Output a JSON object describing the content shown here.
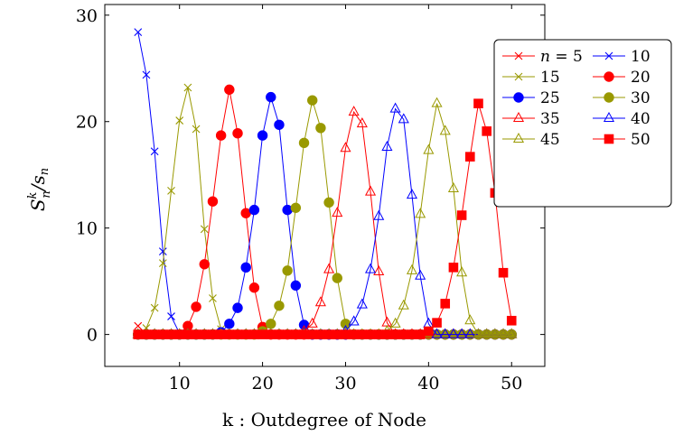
{
  "chart_data": {
    "type": "line",
    "xlabel": "k : Outdegree of Node",
    "ylabel_main": "S",
    "ylabel_sup": "k",
    "ylabel_sub": "n",
    "ylabel_tail": "/s",
    "ylabel_tail_sub": "n",
    "xlim": [
      1,
      54
    ],
    "ylim": [
      -3,
      31
    ],
    "x_ticks": [
      10,
      20,
      30,
      40,
      50
    ],
    "y_ticks": [
      0,
      10,
      20,
      30
    ],
    "grid": false,
    "legend_position": "top-right",
    "x_range": [
      5,
      50
    ],
    "series": [
      {
        "name": "n = 5",
        "color": "#ff0000",
        "marker": "x",
        "peaks": [
          [
            5,
            0.8
          ]
        ]
      },
      {
        "name": "10",
        "color": "#0000ff",
        "marker": "x",
        "peaks": [
          [
            5,
            28.4
          ],
          [
            6,
            24.4
          ],
          [
            7,
            17.2
          ],
          [
            8,
            7.8
          ],
          [
            9,
            1.7
          ],
          [
            10,
            0.1
          ]
        ]
      },
      {
        "name": "15",
        "color": "#999900",
        "marker": "x",
        "peaks": [
          [
            6,
            0.6
          ],
          [
            7,
            2.5
          ],
          [
            8,
            6.7
          ],
          [
            9,
            13.5
          ],
          [
            10,
            20.1
          ],
          [
            11,
            23.2
          ],
          [
            12,
            19.3
          ],
          [
            13,
            9.9
          ],
          [
            14,
            3.4
          ],
          [
            15,
            0.5
          ]
        ]
      },
      {
        "name": "20",
        "color": "#ff0000",
        "marker": "circle",
        "peaks": [
          [
            11,
            0.8
          ],
          [
            12,
            2.6
          ],
          [
            13,
            6.6
          ],
          [
            14,
            12.5
          ],
          [
            15,
            18.7
          ],
          [
            16,
            23.0
          ],
          [
            17,
            18.9
          ],
          [
            18,
            11.4
          ],
          [
            19,
            4.4
          ],
          [
            20,
            0.7
          ]
        ]
      },
      {
        "name": "25",
        "color": "#0000ff",
        "marker": "circle",
        "peaks": [
          [
            15,
            0.2
          ],
          [
            16,
            1.0
          ],
          [
            17,
            2.5
          ],
          [
            18,
            6.3
          ],
          [
            19,
            11.7
          ],
          [
            20,
            18.7
          ],
          [
            21,
            22.3
          ],
          [
            22,
            19.7
          ],
          [
            23,
            11.7
          ],
          [
            24,
            4.6
          ],
          [
            25,
            0.9
          ]
        ]
      },
      {
        "name": "30",
        "color": "#999900",
        "marker": "circle",
        "peaks": [
          [
            20,
            0.3
          ],
          [
            21,
            1.0
          ],
          [
            22,
            2.7
          ],
          [
            23,
            6.0
          ],
          [
            24,
            11.9
          ],
          [
            25,
            18.0
          ],
          [
            26,
            22.0
          ],
          [
            27,
            19.4
          ],
          [
            28,
            12.4
          ],
          [
            29,
            5.3
          ],
          [
            30,
            1.0
          ]
        ]
      },
      {
        "name": "35",
        "color": "#ff0000",
        "marker": "triangle",
        "peaks": [
          [
            25,
            0.3
          ],
          [
            26,
            1.0
          ],
          [
            27,
            3.0
          ],
          [
            28,
            6.1
          ],
          [
            29,
            11.4
          ],
          [
            30,
            17.5
          ],
          [
            31,
            20.9
          ],
          [
            32,
            19.8
          ],
          [
            33,
            13.4
          ],
          [
            34,
            5.9
          ],
          [
            35,
            1.1
          ]
        ]
      },
      {
        "name": "40",
        "color": "#0000ff",
        "marker": "triangle",
        "peaks": [
          [
            30,
            0.3
          ],
          [
            31,
            1.2
          ],
          [
            32,
            2.8
          ],
          [
            33,
            6.1
          ],
          [
            34,
            11.1
          ],
          [
            35,
            17.6
          ],
          [
            36,
            21.2
          ],
          [
            37,
            20.2
          ],
          [
            38,
            13.1
          ],
          [
            39,
            5.5
          ],
          [
            40,
            1.0
          ]
        ]
      },
      {
        "name": "45",
        "color": "#999900",
        "marker": "triangle",
        "peaks": [
          [
            35,
            0.3
          ],
          [
            36,
            1.0
          ],
          [
            37,
            2.7
          ],
          [
            38,
            6.0
          ],
          [
            39,
            11.3
          ],
          [
            40,
            17.3
          ],
          [
            41,
            21.7
          ],
          [
            42,
            19.1
          ],
          [
            43,
            13.7
          ],
          [
            44,
            5.8
          ],
          [
            45,
            1.3
          ]
        ]
      },
      {
        "name": "50",
        "color": "#ff0000",
        "marker": "square",
        "peaks": [
          [
            40,
            0.3
          ],
          [
            41,
            1.1
          ],
          [
            42,
            2.9
          ],
          [
            43,
            6.3
          ],
          [
            44,
            11.2
          ],
          [
            45,
            16.7
          ],
          [
            46,
            21.7
          ],
          [
            47,
            19.1
          ],
          [
            48,
            13.3
          ],
          [
            49,
            5.8
          ],
          [
            50,
            1.3
          ]
        ]
      }
    ]
  }
}
